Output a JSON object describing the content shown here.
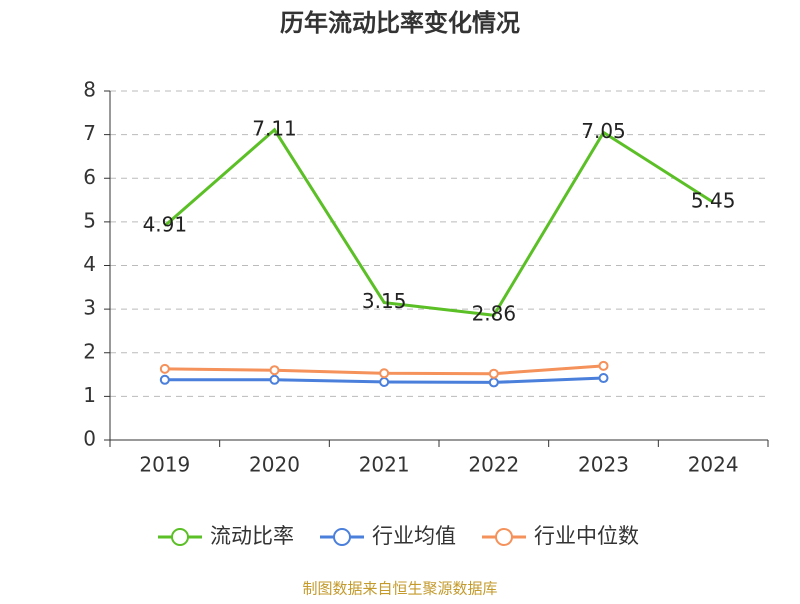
{
  "chart_data": {
    "type": "line",
    "title": "历年流动比率变化情况",
    "categories": [
      "2019",
      "2020",
      "2021",
      "2022",
      "2023",
      "2024"
    ],
    "series": [
      {
        "name": "流动比率",
        "color": "#5bbf26",
        "values": [
          4.91,
          7.11,
          3.15,
          2.86,
          7.05,
          5.45
        ]
      },
      {
        "name": "行业均值",
        "color": "#4a7fdb",
        "values": [
          1.38,
          1.38,
          1.33,
          1.32,
          1.42,
          null
        ]
      },
      {
        "name": "行业中位数",
        "color": "#f5915a",
        "values": [
          1.63,
          1.6,
          1.53,
          1.52,
          1.7,
          null
        ]
      }
    ],
    "ylim": [
      0,
      8
    ],
    "yticks": [
      0,
      1,
      2,
      3,
      4,
      5,
      6,
      7,
      8
    ],
    "grid": true,
    "source": "制图数据来自恒生聚源数据库"
  }
}
